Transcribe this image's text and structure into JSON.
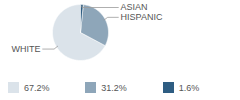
{
  "chart_data": {
    "type": "pie",
    "categories": [
      "WHITE",
      "HISPANIC",
      "ASIAN"
    ],
    "values": [
      67.2,
      31.2,
      1.6
    ],
    "value_labels": [
      "67.2%",
      "31.2%",
      "1.6%"
    ],
    "colors": [
      "#dbe3ea",
      "#8ea6b9",
      "#2e5d82"
    ],
    "legend": "bottom"
  }
}
